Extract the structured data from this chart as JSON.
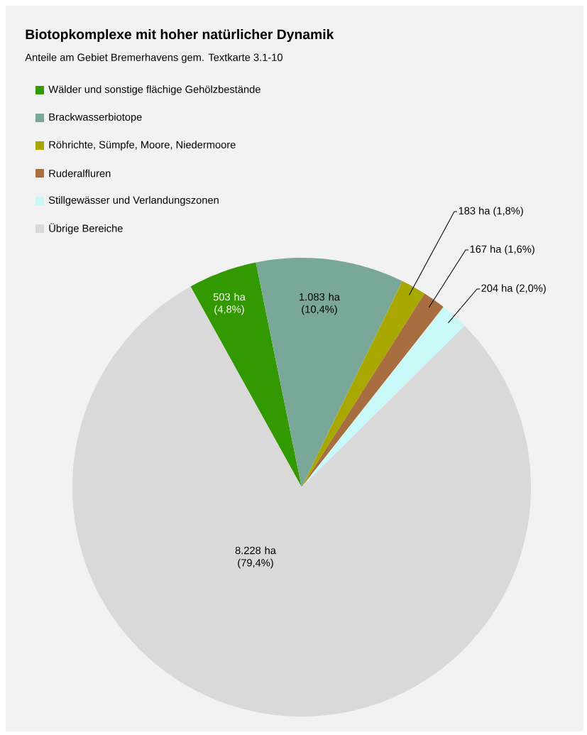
{
  "chart_data": {
    "type": "pie",
    "title": "Biotopkomplexe mit hoher natürlicher Dynamik",
    "subtitle": "Anteile am Gebiet Bremerhavens gem. Textkarte 3.1-10",
    "categories": [
      "Wälder und sonstige flächige Gehölzbestände",
      "Brackwasserbiotope",
      "Röhrichte, Sümpfe, Moore, Niedermoore",
      "Ruderalfluren",
      "Stillgewässer und Verlandungszonen",
      "Übrige Bereiche"
    ],
    "values": [
      503,
      1083,
      183,
      167,
      204,
      8228
    ],
    "colors": [
      "#339900",
      "#7aa898",
      "#a8a800",
      "#a86e40",
      "#c8f8f8",
      "#d9d9d9"
    ],
    "value_labels": [
      "503 ha (4,8%)",
      "1.083 ha (10,4%)",
      "183 ha (1,8%)",
      "167 ha (1,6%)",
      "204 ha (2,0%)",
      "8.228 ha (79,4%)"
    ],
    "legend": "top left"
  }
}
